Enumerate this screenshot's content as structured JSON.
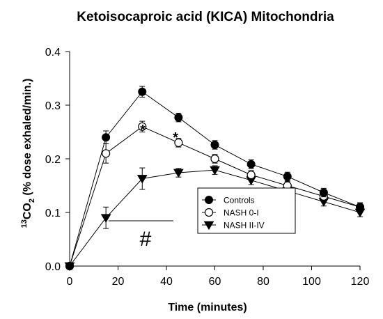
{
  "chart_data": {
    "type": "line",
    "title": "Ketoisocaproic acid (KICA) Mitochondria",
    "xlabel": "Time (minutes)",
    "ylabel_super": "13",
    "ylabel_main": "CO",
    "ylabel_sub": "2",
    "ylabel_rest": " (% dose exhaled/min.)",
    "xlim": [
      0,
      120
    ],
    "ylim": [
      0,
      0.4
    ],
    "x_ticks": [
      "0",
      "20",
      "40",
      "60",
      "80",
      "100",
      "120"
    ],
    "y_ticks": [
      "0.0",
      "0.1",
      "0.2",
      "0.3",
      "0.4"
    ],
    "legend_position": "lower-right",
    "grid": false,
    "series": [
      {
        "name": "Controls",
        "marker": "filled-circle",
        "x": [
          0,
          15,
          30,
          45,
          60,
          75,
          90,
          105,
          120
        ],
        "y": [
          0,
          0.24,
          0.325,
          0.277,
          0.226,
          0.19,
          0.167,
          0.137,
          0.11
        ],
        "err": [
          0,
          0.012,
          0.01,
          0.008,
          0.008,
          0.008,
          0.008,
          0.008,
          0.008
        ]
      },
      {
        "name": "NASH 0-I",
        "marker": "open-circle",
        "x": [
          0,
          15,
          30,
          45,
          60,
          75,
          90,
          105,
          120
        ],
        "y": [
          0,
          0.21,
          0.26,
          0.23,
          0.2,
          0.17,
          0.15,
          0.13,
          0.11
        ],
        "err": [
          0,
          0.018,
          0.01,
          0.008,
          0.008,
          0.008,
          0.008,
          0.008,
          0.008
        ]
      },
      {
        "name": "NASH II-IV",
        "marker": "filled-triangle-down",
        "x": [
          0,
          15,
          30,
          45,
          60,
          75,
          90,
          105,
          120
        ],
        "y": [
          0,
          0.09,
          0.163,
          0.174,
          0.179,
          0.16,
          0.14,
          0.12,
          0.1
        ],
        "err": [
          0,
          0.02,
          0.02,
          0.008,
          0.008,
          0.008,
          0.008,
          0.008,
          0.008
        ]
      }
    ],
    "annotations": {
      "star_1": "*",
      "star_2": "*",
      "hash": "#"
    }
  }
}
